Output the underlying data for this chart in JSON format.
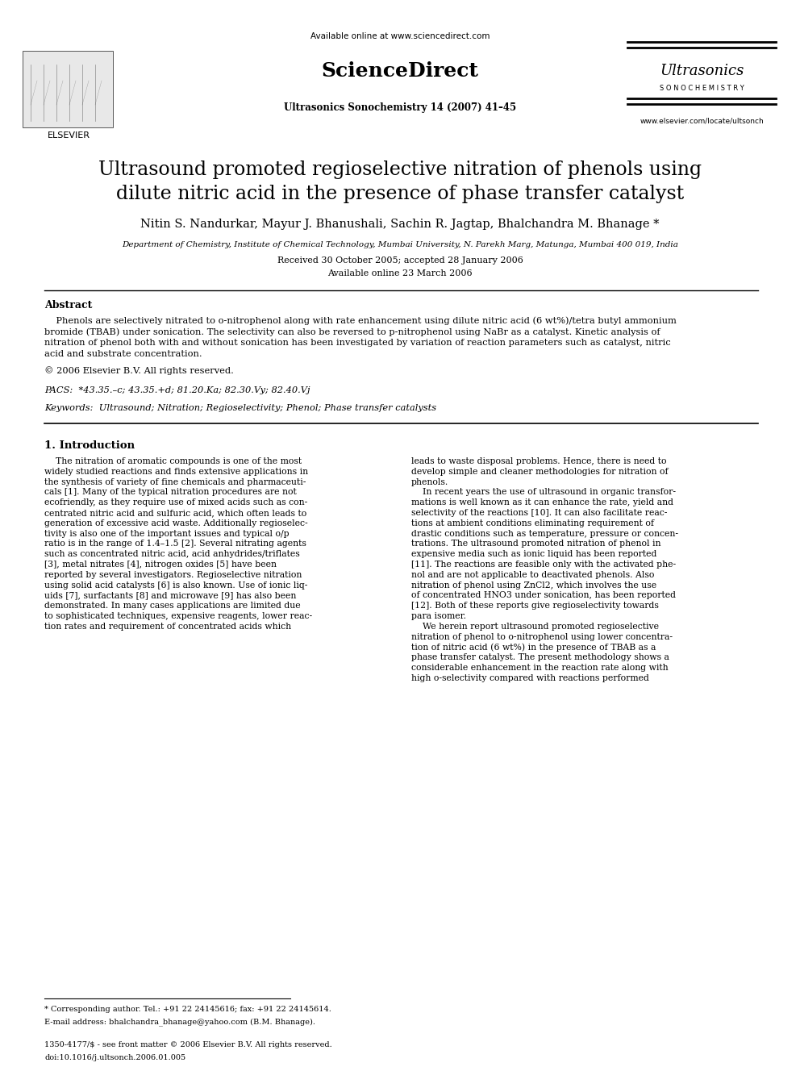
{
  "bg_color": "#ffffff",
  "title_line1": "Ultrasound promoted regioselective nitration of phenols using",
  "title_line2": "dilute nitric acid in the presence of phase transfer catalyst",
  "authors": "Nitin S. Nandurkar, Mayur J. Bhanushali, Sachin R. Jagtap, Bhalchandra M. Bhanage *",
  "affiliation": "Department of Chemistry, Institute of Chemical Technology, Mumbai University, N. Parekh Marg, Matunga, Mumbai 400 019, India",
  "received": "Received 30 October 2005; accepted 28 January 2006",
  "available": "Available online 23 March 2006",
  "journal_header": "Ultrasonics Sonochemistry 14 (2007) 41–45",
  "url_top": "Available online at www.sciencedirect.com",
  "url_bottom": "www.elsevier.com/locate/ultsonch",
  "abstract_heading": "Abstract",
  "abstract_body": "    Phenols are selectively nitrated to o-nitrophenol along with rate enhancement using dilute nitric acid (6 wt%)/tetra butyl ammonium\nbromide (TBAB) under sonication. The selectivity can also be reversed to p-nitrophenol using NaBr as a catalyst. Kinetic analysis of\nnitration of phenol both with and without sonication has been investigated by variation of reaction parameters such as catalyst, nitric\nacid and substrate concentration.",
  "copyright": "© 2006 Elsevier B.V. All rights reserved.",
  "pacs": "PACS:  *43.35.–c; 43.35.+d; 81.20.Ka; 82.30.Vy; 82.40.Vj",
  "keywords": "Keywords:  Ultrasound; Nitration; Regioselectivity; Phenol; Phase transfer catalysts",
  "intro_heading": "1. Introduction",
  "intro_col1_lines": [
    "    The nitration of aromatic compounds is one of the most",
    "widely studied reactions and finds extensive applications in",
    "the synthesis of variety of fine chemicals and pharmaceuti-",
    "cals [1]. Many of the typical nitration procedures are not",
    "ecofriendly, as they require use of mixed acids such as con-",
    "centrated nitric acid and sulfuric acid, which often leads to",
    "generation of excessive acid waste. Additionally regioselec-",
    "tivity is also one of the important issues and typical o/p",
    "ratio is in the range of 1.4–1.5 [2]. Several nitrating agents",
    "such as concentrated nitric acid, acid anhydrides/triflates",
    "[3], metal nitrates [4], nitrogen oxides [5] have been",
    "reported by several investigators. Regioselective nitration",
    "using solid acid catalysts [6] is also known. Use of ionic liq-",
    "uids [7], surfactants [8] and microwave [9] has also been",
    "demonstrated. In many cases applications are limited due",
    "to sophisticated techniques, expensive reagents, lower reac-",
    "tion rates and requirement of concentrated acids which"
  ],
  "intro_col2_lines": [
    "leads to waste disposal problems. Hence, there is need to",
    "develop simple and cleaner methodologies for nitration of",
    "phenols.",
    "    In recent years the use of ultrasound in organic transfor-",
    "mations is well known as it can enhance the rate, yield and",
    "selectivity of the reactions [10]. It can also facilitate reac-",
    "tions at ambient conditions eliminating requirement of",
    "drastic conditions such as temperature, pressure or concen-",
    "trations. The ultrasound promoted nitration of phenol in",
    "expensive media such as ionic liquid has been reported",
    "[11]. The reactions are feasible only with the activated phe-",
    "nol and are not applicable to deactivated phenols. Also",
    "nitration of phenol using ZnCl2, which involves the use",
    "of concentrated HNO3 under sonication, has been reported",
    "[12]. Both of these reports give regioselectivity towards",
    "para isomer.",
    "    We herein report ultrasound promoted regioselective",
    "nitration of phenol to o-nitrophenol using lower concentra-",
    "tion of nitric acid (6 wt%) in the presence of TBAB as a",
    "phase transfer catalyst. The present methodology shows a",
    "considerable enhancement in the reaction rate along with",
    "high o-selectivity compared with reactions performed"
  ],
  "footnote_star": "* Corresponding author. Tel.: +91 22 24145616; fax: +91 22 24145614.",
  "footnote_email": "E-mail address: bhalchandra_bhanage@yahoo.com (B.M. Bhanage).",
  "footer_issn": "1350-4177/$ - see front matter © 2006 Elsevier B.V. All rights reserved.",
  "footer_doi": "doi:10.1016/j.ultsonch.2006.01.005",
  "elsevier_label": "ELSEVIER",
  "sciencedirect_label": "ScienceDirect",
  "ultrasonics_label": "Ultrasonics",
  "sonochemistry_label": "S O N O C H E M I S T R Y"
}
